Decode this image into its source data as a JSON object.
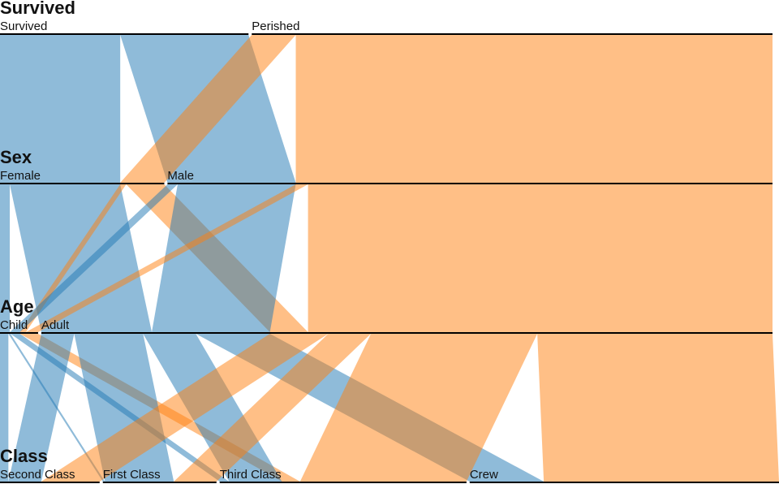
{
  "chart_data": {
    "type": "parallel-sets",
    "dimensions": [
      {
        "title": "Survived",
        "categories": [
          "Survived",
          "Perished"
        ]
      },
      {
        "title": "Sex",
        "categories": [
          "Female",
          "Male"
        ]
      },
      {
        "title": "Age",
        "categories": [
          "Child",
          "Adult"
        ]
      },
      {
        "title": "Class",
        "categories": [
          "Second Class",
          "First Class",
          "Third Class",
          "Crew"
        ]
      }
    ],
    "color_by": "Survived",
    "colors": {
      "Survived": "#1f77b4",
      "Perished": "#ff7f0e"
    },
    "ribbon_opacity": 0.5,
    "records": [
      {
        "Class": "First Class",
        "Age": "Child",
        "Sex": "Male",
        "Survived": "Survived",
        "count": 5
      },
      {
        "Class": "First Class",
        "Age": "Child",
        "Sex": "Female",
        "Survived": "Survived",
        "count": 1
      },
      {
        "Class": "First Class",
        "Age": "Adult",
        "Sex": "Male",
        "Survived": "Survived",
        "count": 57
      },
      {
        "Class": "First Class",
        "Age": "Adult",
        "Sex": "Male",
        "Survived": "Perished",
        "count": 118
      },
      {
        "Class": "First Class",
        "Age": "Adult",
        "Sex": "Female",
        "Survived": "Survived",
        "count": 140
      },
      {
        "Class": "First Class",
        "Age": "Adult",
        "Sex": "Female",
        "Survived": "Perished",
        "count": 4
      },
      {
        "Class": "Second Class",
        "Age": "Child",
        "Sex": "Male",
        "Survived": "Survived",
        "count": 11
      },
      {
        "Class": "Second Class",
        "Age": "Child",
        "Sex": "Female",
        "Survived": "Survived",
        "count": 13
      },
      {
        "Class": "Second Class",
        "Age": "Adult",
        "Sex": "Male",
        "Survived": "Survived",
        "count": 14
      },
      {
        "Class": "Second Class",
        "Age": "Adult",
        "Sex": "Male",
        "Survived": "Perished",
        "count": 154
      },
      {
        "Class": "Second Class",
        "Age": "Adult",
        "Sex": "Female",
        "Survived": "Survived",
        "count": 80
      },
      {
        "Class": "Second Class",
        "Age": "Adult",
        "Sex": "Female",
        "Survived": "Perished",
        "count": 13
      },
      {
        "Class": "Third Class",
        "Age": "Child",
        "Sex": "Male",
        "Survived": "Survived",
        "count": 13
      },
      {
        "Class": "Third Class",
        "Age": "Child",
        "Sex": "Male",
        "Survived": "Perished",
        "count": 35
      },
      {
        "Class": "Third Class",
        "Age": "Child",
        "Sex": "Female",
        "Survived": "Survived",
        "count": 14
      },
      {
        "Class": "Third Class",
        "Age": "Child",
        "Sex": "Female",
        "Survived": "Perished",
        "count": 17
      },
      {
        "Class": "Third Class",
        "Age": "Adult",
        "Sex": "Male",
        "Survived": "Survived",
        "count": 75
      },
      {
        "Class": "Third Class",
        "Age": "Adult",
        "Sex": "Male",
        "Survived": "Perished",
        "count": 387
      },
      {
        "Class": "Third Class",
        "Age": "Adult",
        "Sex": "Female",
        "Survived": "Survived",
        "count": 76
      },
      {
        "Class": "Third Class",
        "Age": "Adult",
        "Sex": "Female",
        "Survived": "Perished",
        "count": 89
      },
      {
        "Class": "Crew",
        "Age": "Adult",
        "Sex": "Male",
        "Survived": "Survived",
        "count": 192
      },
      {
        "Class": "Crew",
        "Age": "Adult",
        "Sex": "Male",
        "Survived": "Perished",
        "count": 670
      },
      {
        "Class": "Crew",
        "Age": "Adult",
        "Sex": "Female",
        "Survived": "Survived",
        "count": 20
      },
      {
        "Class": "Crew",
        "Age": "Adult",
        "Sex": "Female",
        "Survived": "Perished",
        "count": 3
      }
    ]
  }
}
